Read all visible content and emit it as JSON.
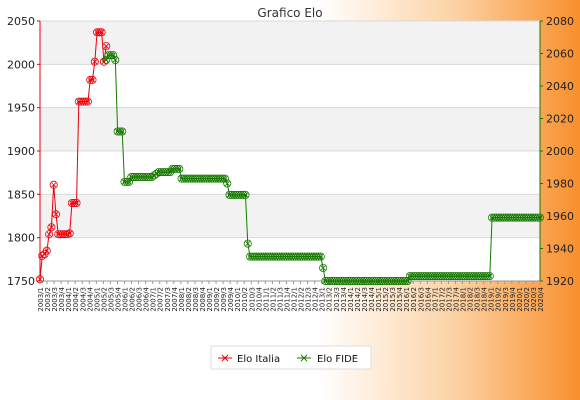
{
  "chart_data": {
    "type": "line",
    "title": "Grafico Elo",
    "y_left": {
      "min": 1750,
      "max": 2050,
      "ticks": [
        1750,
        1800,
        1850,
        1900,
        1950,
        2000,
        2050
      ]
    },
    "y_right": {
      "min": 1920,
      "max": 2080,
      "ticks": [
        1920,
        1940,
        1960,
        1980,
        2000,
        2020,
        2040,
        2060,
        2080
      ]
    },
    "grid": true,
    "x_tick_labels": [
      "2003/1",
      "2003/2",
      "2003/3",
      "2003/4",
      "2004/1",
      "2004/2",
      "2004/3",
      "2004/4",
      "2005/1",
      "2005/2",
      "2005/3",
      "2005/4",
      "2006/1",
      "2006/2",
      "2006/3",
      "2006/4",
      "2007/1",
      "2007/2",
      "2007/3",
      "2007/4",
      "2008/1",
      "2008/2",
      "2008/3",
      "2008/4",
      "2009/1",
      "2009/2",
      "2009/3",
      "2009/4",
      "2010/1",
      "2010/2",
      "2010/3",
      "2010/4",
      "2011/1",
      "2011/2",
      "2011/3",
      "2011/4",
      "2012/1",
      "2012/2",
      "2012/3",
      "2012/4",
      "2013/1",
      "2013/2",
      "2013/3",
      "2013/4",
      "2014/1",
      "2014/2",
      "2014/3",
      "2014/4",
      "2015/1",
      "2015/2",
      "2015/3",
      "2015/4",
      "2016/1",
      "2016/2",
      "2016/3",
      "2016/4",
      "2017/1",
      "2017/2",
      "2017/3",
      "2017/4",
      "2018/1",
      "2018/2",
      "2018/3",
      "2018/4",
      "2019/1",
      "2019/2",
      "2019/3",
      "2019/4",
      "2020/1",
      "2020/2",
      "2020/3",
      "2020/4"
    ],
    "legend": {
      "placement": "bottom-center"
    },
    "series": [
      {
        "name": "Elo Italia",
        "axis": "left",
        "color": "#e8000b",
        "x": [
          0,
          1,
          2,
          3,
          4,
          5,
          6,
          7,
          8,
          9,
          10,
          11,
          12,
          13,
          14,
          15,
          16,
          17,
          18,
          19,
          20,
          21,
          22,
          23,
          24,
          25,
          26,
          27,
          28,
          29
        ],
        "values": [
          1752,
          1779,
          1781,
          1785,
          1804,
          1812,
          1861,
          1827,
          1804,
          1804,
          1804,
          1804,
          1804,
          1805,
          1840,
          1840,
          1840,
          1957,
          1957,
          1957,
          1957,
          1957,
          1982,
          1982,
          2003,
          2037,
          2037,
          2037,
          2003,
          2021
        ]
      },
      {
        "name": "Elo FIDE",
        "axis": "right",
        "color": "#167a00",
        "x_start": 29,
        "values": [
          2056,
          2059,
          2059,
          2059,
          2056,
          2012,
          2012,
          2012,
          1981,
          1981,
          1981,
          1984,
          1984,
          1984,
          1984,
          1984,
          1984,
          1984,
          1984,
          1984,
          1984,
          1985,
          1986,
          1987,
          1987,
          1987,
          1987,
          1987,
          1987,
          1989,
          1989,
          1989,
          1989,
          1983,
          1983,
          1983,
          1983,
          1983,
          1983,
          1983,
          1983,
          1983,
          1983,
          1983,
          1983,
          1983,
          1983,
          1983,
          1983,
          1983,
          1983,
          1983,
          1983,
          1980,
          1973,
          1973,
          1973,
          1973,
          1973,
          1973,
          1973,
          1973,
          1943,
          1935,
          1935,
          1935,
          1935,
          1935,
          1935,
          1935,
          1935,
          1935,
          1935,
          1935,
          1935,
          1935,
          1935,
          1935,
          1935,
          1935,
          1935,
          1935,
          1935,
          1935,
          1935,
          1935,
          1935,
          1935,
          1935,
          1935,
          1935,
          1935,
          1935,
          1935,
          1935,
          1928,
          1920,
          1920,
          1920,
          1920,
          1920,
          1920,
          1920,
          1920,
          1920,
          1920,
          1920,
          1920,
          1920,
          1920,
          1920,
          1920,
          1920,
          1920,
          1920,
          1920,
          1920,
          1920,
          1920,
          1920,
          1920,
          1920,
          1920,
          1920,
          1920,
          1920,
          1920,
          1920,
          1920,
          1920,
          1920,
          1920,
          1920,
          1923,
          1923,
          1923,
          1923,
          1923,
          1923,
          1923,
          1923,
          1923,
          1923,
          1923,
          1923,
          1923,
          1923,
          1923,
          1923,
          1923,
          1923,
          1923,
          1923,
          1923,
          1923,
          1923,
          1923,
          1923,
          1923,
          1923,
          1923,
          1923,
          1923,
          1923,
          1923,
          1923,
          1923,
          1923,
          1923,
          1959,
          1959,
          1959,
          1959,
          1959,
          1959,
          1959,
          1959,
          1959,
          1959,
          1959,
          1959,
          1959,
          1959,
          1959,
          1959,
          1959,
          1959,
          1959,
          1959,
          1959,
          1959
        ]
      }
    ]
  }
}
